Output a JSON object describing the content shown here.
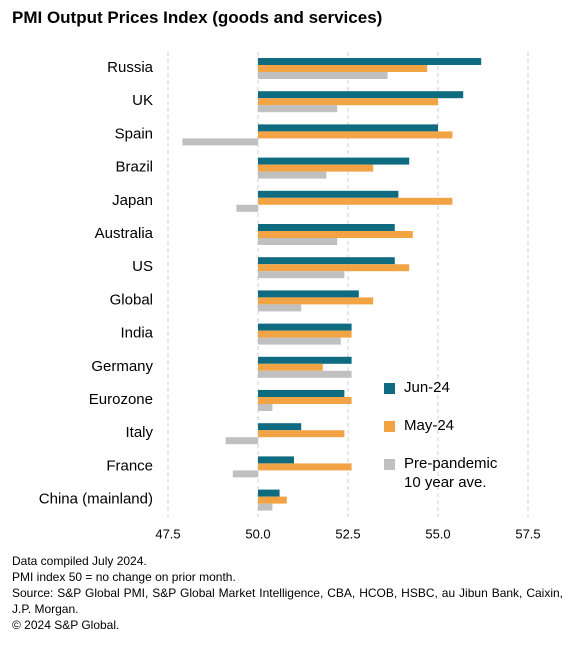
{
  "chart_data": {
    "type": "hbar",
    "title": "PMI Output Prices Index (goods and services)",
    "categories": [
      "Russia",
      "UK",
      "Spain",
      "Brazil",
      "Japan",
      "Australia",
      "US",
      "Global",
      "India",
      "Germany",
      "Eurozone",
      "Italy",
      "France",
      "China (mainland)"
    ],
    "series": [
      {
        "name": "Jun-24",
        "color": "#0e6b80",
        "values": [
          56.2,
          55.7,
          55.0,
          54.2,
          53.9,
          53.8,
          53.8,
          52.8,
          52.6,
          52.6,
          52.4,
          51.2,
          51.0,
          50.6
        ]
      },
      {
        "name": "May-24",
        "color": "#f2a445",
        "values": [
          54.7,
          55.0,
          55.4,
          53.2,
          55.4,
          54.3,
          54.2,
          53.2,
          52.6,
          51.8,
          52.6,
          52.4,
          52.6,
          50.8
        ]
      },
      {
        "name": "Pre-pandemic\n10 year ave.",
        "color": "#c0c0c0",
        "values": [
          53.6,
          52.2,
          47.9,
          51.9,
          49.4,
          52.2,
          52.4,
          51.2,
          52.3,
          52.6,
          50.4,
          49.1,
          49.3,
          50.4
        ]
      }
    ],
    "baseline": 50,
    "xlim": [
      47.5,
      57.5
    ],
    "xticks": [
      47.5,
      {
        "value": 50,
        "label": "50.0"
      },
      52.5,
      {
        "value": 55,
        "label": "55.0"
      },
      57.5
    ],
    "grid": true,
    "legend": "lower right",
    "notes": [
      "Data compiled July 2024.",
      "PMI index 50 = no change on prior month.",
      "Source: S&P Global PMI, S&P Global Market Intelligence, CBA, HCOB, HSBC, au Jibun Bank, Caixin, J.P. Morgan.",
      "© 2024 S&P Global."
    ]
  }
}
